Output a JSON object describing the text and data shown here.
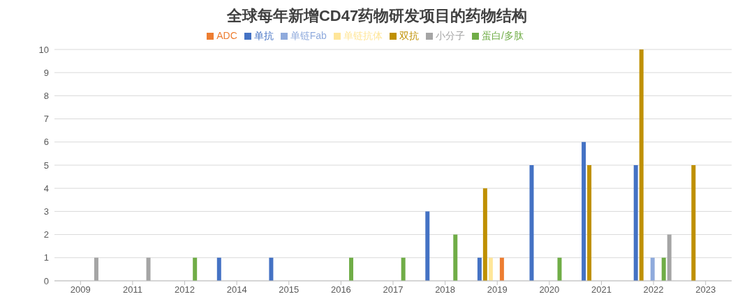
{
  "chart_data": {
    "type": "bar",
    "title": "全球每年新增CD47药物研发项目的药物结构",
    "categories": [
      "2009",
      "2011",
      "2012",
      "2014",
      "2015",
      "2016",
      "2017",
      "2018",
      "2019",
      "2020",
      "2021",
      "2022",
      "2023"
    ],
    "series": [
      {
        "name": "单抗",
        "color": "#4472c4",
        "values": [
          0,
          0,
          0,
          1,
          1,
          0,
          0,
          3,
          1,
          5,
          6,
          5,
          0
        ]
      },
      {
        "name": "双抗",
        "color": "#bf9000",
        "values": [
          0,
          0,
          0,
          0,
          0,
          0,
          0,
          0,
          4,
          0,
          5,
          10,
          5
        ]
      },
      {
        "name": "单链抗体",
        "color": "#ffe699",
        "values": [
          0,
          0,
          0,
          0,
          0,
          0,
          0,
          0,
          1,
          0,
          0,
          0,
          0
        ]
      },
      {
        "name": "单链Fab",
        "color": "#8faadc",
        "values": [
          0,
          0,
          0,
          0,
          0,
          0,
          0,
          0,
          0,
          0,
          0,
          1,
          0
        ]
      },
      {
        "name": "ADC",
        "color": "#ed7d31",
        "values": [
          0,
          0,
          0,
          0,
          0,
          0,
          0,
          0,
          1,
          0,
          0,
          0,
          0
        ]
      },
      {
        "name": "蛋白/多肽",
        "color": "#70ad47",
        "values": [
          0,
          0,
          1,
          0,
          0,
          1,
          1,
          2,
          0,
          1,
          0,
          1,
          0
        ]
      },
      {
        "name": "小分子",
        "color": "#a5a5a5",
        "values": [
          1,
          1,
          0,
          0,
          0,
          0,
          0,
          0,
          0,
          0,
          0,
          2,
          0
        ]
      }
    ],
    "ylim": [
      0,
      10
    ],
    "yticks": [
      0,
      1,
      2,
      3,
      4,
      5,
      6,
      7,
      8,
      9,
      10
    ],
    "grid": "y",
    "legend": "top"
  }
}
